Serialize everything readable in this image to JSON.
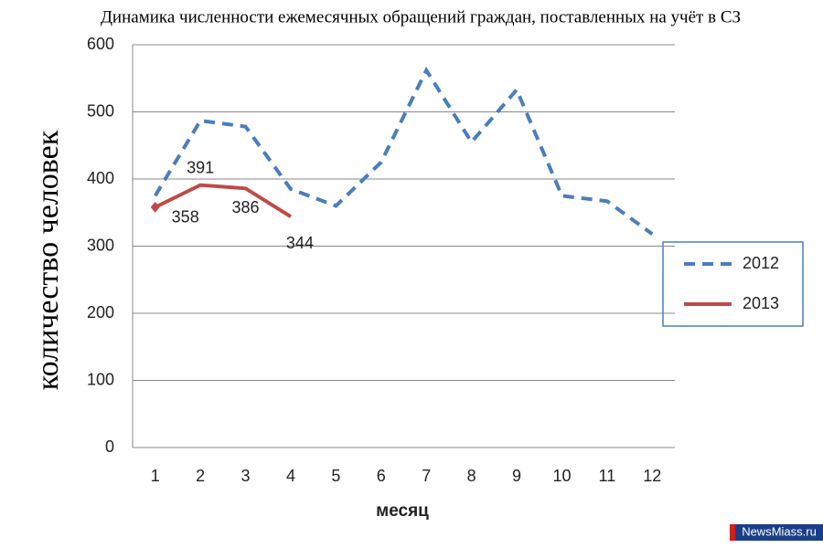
{
  "chart_data": {
    "type": "line",
    "title": "Динамика численности ежемесячных обращений  граждан, поставленных на учёт в СЗ",
    "x_label": "месяц",
    "y_label": "количество человек",
    "categories": [
      "1",
      "2",
      "3",
      "4",
      "5",
      "6",
      "7",
      "8",
      "9",
      "10",
      "11",
      "12"
    ],
    "series": [
      {
        "name": "2012",
        "color": "#4a7ebb",
        "dashed": true,
        "values": [
          375,
          487,
          478,
          385,
          360,
          425,
          562,
          455,
          533,
          375,
          367,
          318
        ]
      },
      {
        "name": "2013",
        "color": "#be4b48",
        "dashed": false,
        "values": [
          358,
          391,
          386,
          344,
          null,
          null,
          null,
          null,
          null,
          null,
          null,
          null
        ],
        "show_labels": true
      }
    ],
    "ylim": [
      0,
      600
    ],
    "yticks": [
      0,
      100,
      200,
      300,
      400,
      500,
      600
    ],
    "grid": true,
    "legend": "right",
    "watermark": "NewsMiass.ru"
  }
}
